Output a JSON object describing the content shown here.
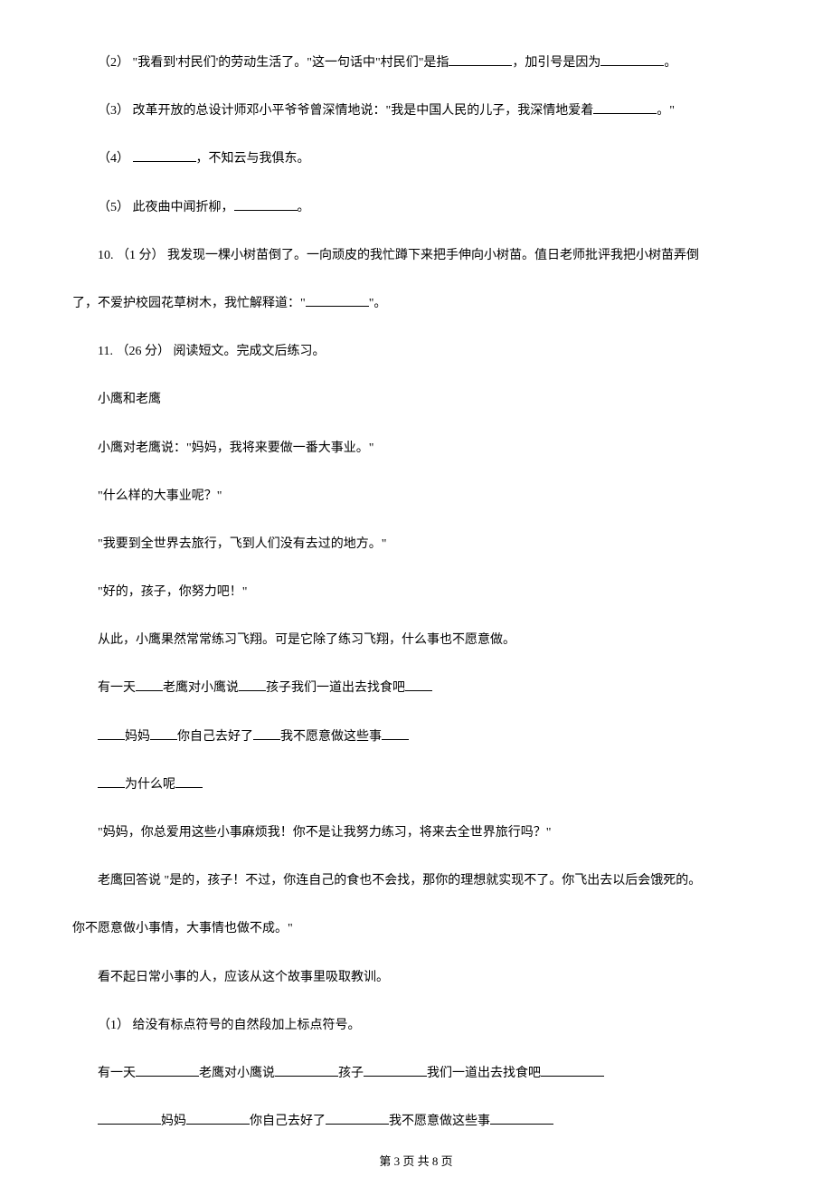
{
  "q2": {
    "prefix": "（2） \"我看到'村民们'的劳动生活了。\"这一句话中\"村民们\"是指",
    "middle": "，加引号是因为",
    "suffix": "。"
  },
  "q3": {
    "prefix": "（3） 改革开放的总设计师邓小平爷爷曾深情地说：\"我是中国人民的儿子，我深情地爱着",
    "suffix": "。\""
  },
  "q4": {
    "prefix": "（4） ",
    "suffix": "，不知云与我俱东。"
  },
  "q5": {
    "prefix": "（5） 此夜曲中闻折柳，",
    "suffix": "。"
  },
  "q10": {
    "line1": "10. （1 分） 我发现一棵小树苗倒了。一向顽皮的我忙蹲下来把手伸向小树苗。值日老师批评我把小树苗弄倒",
    "line2_prefix": "了，不爱护校园花草树木，我忙解释道：\"",
    "line2_suffix": "\"。"
  },
  "q11": {
    "intro": "11. （26 分） 阅读短文。完成文后练习。",
    "title": "小鹰和老鹰",
    "p1": "小鹰对老鹰说：\"妈妈，我将来要做一番大事业。\"",
    "p2": "\"什么样的大事业呢？\"",
    "p3": "\"我要到全世界去旅行，飞到人们没有去过的地方。\"",
    "p4": "\"好的，孩子，你努力吧！\"",
    "p5": "从此，小鹰果然常常练习飞翔。可是它除了练习飞翔，什么事也不愿意做。",
    "p6_parts": [
      "有一天",
      "老鹰对小鹰说",
      "孩子我们一道出去找食吧"
    ],
    "p7_parts": [
      "妈妈",
      "你自己去好了",
      "我不愿意做这些事"
    ],
    "p8_parts": [
      "为什么呢"
    ],
    "p9": "\"妈妈，你总爱用这些小事麻烦我！你不是让我努力练习，将来去全世界旅行吗？\"",
    "p10_line1": "老鹰回答说 \"是的，孩子！不过，你连自己的食也不会找，那你的理想就实现不了。你飞出去以后会饿死的。",
    "p10_line2": "你不愿意做小事情，大事情也做不成。\"",
    "p11": "看不起日常小事的人，应该从这个故事里吸取教训。",
    "sub1": "（1） 给没有标点符号的自然段加上标点符号。",
    "ans1_parts": [
      "有一天",
      "老鹰对小鹰说",
      "孩子",
      "我们一道出去找食吧"
    ],
    "ans2_parts": [
      "妈妈",
      "你自己去好了",
      "我不愿意做这些事"
    ]
  },
  "footer": "第 3 页 共 8 页",
  "colors": {
    "background": "#ffffff",
    "text": "#000000",
    "blank_line": "#000000"
  },
  "typography": {
    "body_fontsize": 14,
    "footer_fontsize": 13,
    "line_height": 2.8,
    "font_family": "SimSun"
  }
}
